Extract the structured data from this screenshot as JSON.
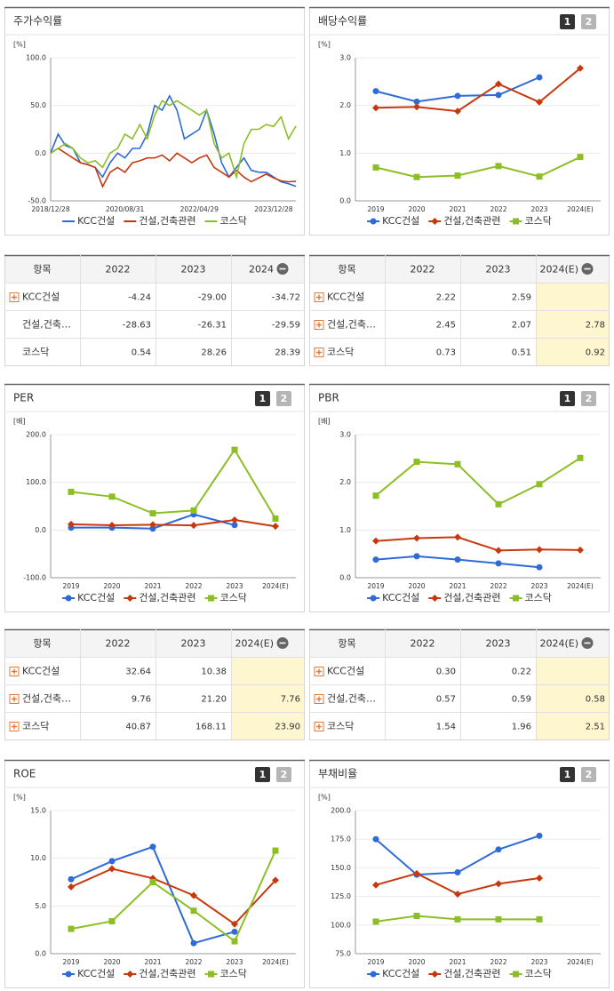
{
  "chart_data": [
    {
      "type": "line",
      "title": "주가수익률",
      "unit": "[%]",
      "grid": true,
      "categories": [
        "2018/12/28",
        null,
        null,
        null,
        null,
        null,
        null,
        null,
        null,
        null,
        "2020/08/31",
        null,
        null,
        null,
        null,
        null,
        null,
        null,
        null,
        null,
        "2022/04/29",
        null,
        null,
        null,
        null,
        null,
        null,
        null,
        null,
        null,
        "2023/12/28",
        null,
        null,
        null
      ],
      "ylim": [
        -50,
        100
      ],
      "yticks": [
        {
          "value": -50,
          "label": "-50.0"
        },
        {
          "value": 0,
          "label": "0.0"
        },
        {
          "value": 50,
          "label": "50.0"
        },
        {
          "value": 100,
          "label": "100.0"
        }
      ],
      "series": [
        {
          "name": "KCC건설",
          "color": "#2f6bd6",
          "values": [
            0,
            20,
            8,
            5,
            -10,
            -12,
            -15,
            -25,
            -10,
            0,
            -5,
            5,
            5,
            20,
            50,
            45,
            60,
            45,
            15,
            20,
            25,
            45,
            20,
            -10,
            -25,
            -15,
            -5,
            -18,
            -20,
            -20,
            -25,
            -30,
            -32,
            -34.72
          ]
        },
        {
          "name": "건설,건축관련",
          "color": "#c8380e",
          "values": [
            0,
            5,
            0,
            -5,
            -10,
            -12,
            -15,
            -35,
            -20,
            -15,
            -20,
            -10,
            -8,
            -5,
            -5,
            -2,
            -8,
            0,
            -5,
            -10,
            -5,
            -2,
            -15,
            -20,
            -25,
            -18,
            -25,
            -30,
            -26,
            -22,
            -26,
            -29,
            -30,
            -29.59
          ]
        },
        {
          "name": "코스닥",
          "color": "#8cbf26",
          "values": [
            0,
            5,
            10,
            5,
            -5,
            -10,
            -8,
            -15,
            0,
            5,
            20,
            15,
            30,
            15,
            40,
            55,
            50,
            55,
            50,
            45,
            40,
            45,
            10,
            -5,
            0,
            -25,
            10,
            25,
            25,
            30,
            28,
            38,
            15,
            28.39
          ]
        }
      ]
    },
    {
      "type": "line",
      "title": "배당수익률",
      "unit": "[%]",
      "grid": true,
      "page_buttons": [
        "1",
        "2"
      ],
      "categories": [
        "2019",
        "2020",
        "2021",
        "2022",
        "2023",
        "2024(E)"
      ],
      "ylim": [
        0,
        3
      ],
      "yticks": [
        {
          "value": 0,
          "label": "0.0"
        },
        {
          "value": 1,
          "label": "1.0"
        },
        {
          "value": 2,
          "label": "2.0"
        },
        {
          "value": 3,
          "label": "3.0"
        }
      ],
      "series": [
        {
          "name": "KCC건설",
          "color": "#2f6bd6",
          "values": [
            2.3,
            2.08,
            2.2,
            2.22,
            2.59,
            null
          ]
        },
        {
          "name": "건설,건축관련",
          "color": "#c8380e",
          "values": [
            1.95,
            1.97,
            1.88,
            2.45,
            2.07,
            2.78
          ]
        },
        {
          "name": "코스닥",
          "color": "#8cbf26",
          "values": [
            0.7,
            0.5,
            0.53,
            0.73,
            0.51,
            0.92
          ]
        }
      ]
    },
    {
      "type": "line",
      "title": "PER",
      "unit": "[배]",
      "grid": true,
      "page_buttons": [
        "1",
        "2"
      ],
      "categories": [
        "2019",
        "2020",
        "2021",
        "2022",
        "2023",
        "2024(E)"
      ],
      "ylim": [
        -100,
        200
      ],
      "yticks": [
        {
          "value": -100,
          "label": "-100.0"
        },
        {
          "value": 0,
          "label": "0.0"
        },
        {
          "value": 100,
          "label": "100.0"
        },
        {
          "value": 200,
          "label": "200.0"
        }
      ],
      "series": [
        {
          "name": "KCC건설",
          "color": "#2f6bd6",
          "values": [
            5,
            5,
            3,
            32.64,
            10.38,
            null
          ]
        },
        {
          "name": "건설,건축관련",
          "color": "#c8380e",
          "values": [
            12,
            10,
            11,
            9.76,
            21.2,
            7.76
          ]
        },
        {
          "name": "코스닥",
          "color": "#8cbf26",
          "values": [
            80,
            70,
            35,
            40.87,
            168.11,
            23.9
          ]
        }
      ]
    },
    {
      "type": "line",
      "title": "PBR",
      "unit": "[배]",
      "grid": true,
      "page_buttons": [
        "1",
        "2"
      ],
      "categories": [
        "2019",
        "2020",
        "2021",
        "2022",
        "2023",
        "2024(E)"
      ],
      "ylim": [
        0,
        3
      ],
      "yticks": [
        {
          "value": 0,
          "label": "0.0"
        },
        {
          "value": 1,
          "label": "1.0"
        },
        {
          "value": 2,
          "label": "2.0"
        },
        {
          "value": 3,
          "label": "3.0"
        }
      ],
      "series": [
        {
          "name": "KCC건설",
          "color": "#2f6bd6",
          "values": [
            0.38,
            0.45,
            0.38,
            0.3,
            0.22,
            null
          ]
        },
        {
          "name": "건설,건축관련",
          "color": "#c8380e",
          "values": [
            0.77,
            0.83,
            0.85,
            0.57,
            0.59,
            0.58
          ]
        },
        {
          "name": "코스닥",
          "color": "#8cbf26",
          "values": [
            1.72,
            2.43,
            2.38,
            1.54,
            1.96,
            2.51
          ]
        }
      ]
    },
    {
      "type": "line",
      "title": "ROE",
      "unit": "[%]",
      "grid": true,
      "page_buttons": [
        "1",
        "2"
      ],
      "categories": [
        "2019",
        "2020",
        "2021",
        "2022",
        "2023",
        "2024(E)"
      ],
      "ylim": [
        0,
        15
      ],
      "yticks": [
        {
          "value": 0,
          "label": "0.0"
        },
        {
          "value": 5,
          "label": "5.0"
        },
        {
          "value": 10,
          "label": "10.0"
        },
        {
          "value": 15,
          "label": "15.0"
        }
      ],
      "series": [
        {
          "name": "KCC건설",
          "color": "#2f6bd6",
          "values": [
            7.8,
            9.7,
            11.2,
            1.1,
            2.3,
            null
          ]
        },
        {
          "name": "건설,건축관련",
          "color": "#c8380e",
          "values": [
            7.0,
            8.9,
            7.9,
            6.1,
            3.1,
            7.7
          ]
        },
        {
          "name": "코스닥",
          "color": "#8cbf26",
          "values": [
            2.6,
            3.4,
            7.5,
            4.5,
            1.3,
            10.8
          ]
        }
      ]
    },
    {
      "type": "line",
      "title": "부채비율",
      "unit": "[%]",
      "grid": true,
      "page_buttons": [
        "1",
        "2"
      ],
      "categories": [
        "2019",
        "2020",
        "2021",
        "2022",
        "2023",
        "2024(E)"
      ],
      "ylim": [
        75,
        200
      ],
      "yticks": [
        {
          "value": 75,
          "label": "75.0"
        },
        {
          "value": 100,
          "label": "100.0"
        },
        {
          "value": 125,
          "label": "125.0"
        },
        {
          "value": 150,
          "label": "150.0"
        },
        {
          "value": 175,
          "label": "175.0"
        },
        {
          "value": 200,
          "label": "200.0"
        }
      ],
      "series": [
        {
          "name": "KCC건설",
          "color": "#2f6bd6",
          "values": [
            175,
            144,
            146,
            166,
            178,
            null
          ]
        },
        {
          "name": "건설,건축관련",
          "color": "#c8380e",
          "values": [
            135,
            145,
            127,
            136,
            141,
            null
          ]
        },
        {
          "name": "코스닥",
          "color": "#8cbf26",
          "values": [
            103,
            108,
            105,
            105,
            105,
            null
          ]
        }
      ]
    }
  ],
  "tables": [
    {
      "headers": [
        "항목",
        "2022",
        "2023",
        "2024"
      ],
      "highlight_last": false,
      "rows": [
        {
          "label": "KCC건설",
          "expand": true,
          "cells": [
            "-4.24",
            "-29.00",
            "-34.72"
          ]
        },
        {
          "label": "건설,건축…",
          "expand": false,
          "cells": [
            "-28.63",
            "-26.31",
            "-29.59"
          ]
        },
        {
          "label": "코스닥",
          "expand": false,
          "cells": [
            "0.54",
            "28.26",
            "28.39"
          ]
        }
      ]
    },
    {
      "headers": [
        "항목",
        "2022",
        "2023",
        "2024(E)"
      ],
      "highlight_last": true,
      "rows": [
        {
          "label": "KCC건설",
          "expand": true,
          "cells": [
            "2.22",
            "2.59",
            null
          ]
        },
        {
          "label": "건설,건축…",
          "expand": true,
          "cells": [
            "2.45",
            "2.07",
            "2.78"
          ]
        },
        {
          "label": "코스닥",
          "expand": true,
          "cells": [
            "0.73",
            "0.51",
            "0.92"
          ]
        }
      ]
    },
    {
      "headers": [
        "항목",
        "2022",
        "2023",
        "2024(E)"
      ],
      "highlight_last": true,
      "rows": [
        {
          "label": "KCC건설",
          "expand": true,
          "cells": [
            "32.64",
            "10.38",
            null
          ]
        },
        {
          "label": "건설,건축…",
          "expand": true,
          "cells": [
            "9.76",
            "21.20",
            "7.76"
          ]
        },
        {
          "label": "코스닥",
          "expand": true,
          "cells": [
            "40.87",
            "168.11",
            "23.90"
          ]
        }
      ]
    },
    {
      "headers": [
        "항목",
        "2022",
        "2023",
        "2024(E)"
      ],
      "highlight_last": true,
      "rows": [
        {
          "label": "KCC건설",
          "expand": true,
          "cells": [
            "0.30",
            "0.22",
            null
          ]
        },
        {
          "label": "건설,건축…",
          "expand": true,
          "cells": [
            "0.57",
            "0.59",
            "0.58"
          ]
        },
        {
          "label": "코스닥",
          "expand": true,
          "cells": [
            "1.54",
            "1.96",
            "2.51"
          ]
        }
      ]
    }
  ]
}
